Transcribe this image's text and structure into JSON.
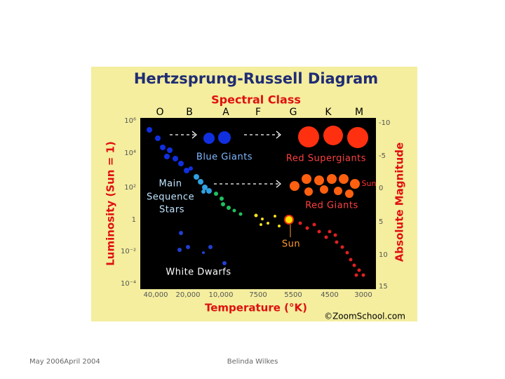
{
  "title": "Hertzsprung-Russell Diagram",
  "spectral_class": {
    "label": "Spectral Class",
    "classes": [
      "O",
      "B",
      "A",
      "F",
      "G",
      "K",
      "M"
    ]
  },
  "luminosity_axis": {
    "label": "Luminosity (Sun = 1)",
    "ticks": [
      "10⁶",
      "10⁴",
      "10²",
      "1",
      "10⁻²",
      "10⁻⁴"
    ]
  },
  "magnitude_axis": {
    "label": "Absolute Magnitude",
    "ticks": [
      "-10",
      "-5",
      "0",
      "5",
      "10",
      "15"
    ]
  },
  "temperature_axis": {
    "label": "Temperature (°K)",
    "ticks": [
      "40,000",
      "20,000",
      "10,000",
      "7500",
      "5500",
      "4500",
      "3000"
    ]
  },
  "regions": {
    "blue_giants": "Blue Giants",
    "red_supergiants": "Red Supergiants",
    "main_sequence": [
      "Main",
      "Sequence",
      "Stars"
    ],
    "red_giants": "Red Giants",
    "sun_upper": "Sun",
    "sun": "Sun",
    "white_dwarfs": "White Dwarfs"
  },
  "credit": "©ZoomSchool.com",
  "footer": {
    "date": "May 2006April 2004",
    "author": "Belinda Wilkes"
  }
}
